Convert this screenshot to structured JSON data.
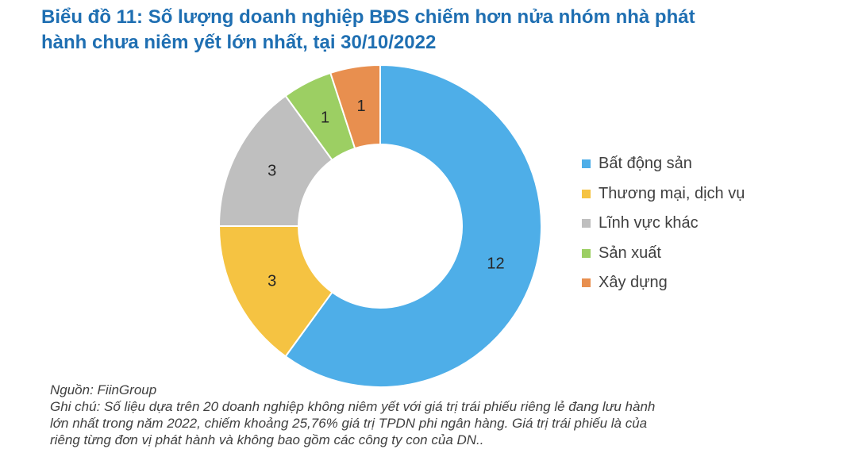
{
  "title": {
    "line1": "Biểu đồ 11: Số lượng doanh nghiệp BĐS chiếm hơn nửa nhóm nhà phát",
    "line2": "hành chưa niêm yết lớn nhất, tại 30/10/2022"
  },
  "chart_data": {
    "type": "pie",
    "variant": "donut",
    "title": "Biểu đồ 11: Số lượng doanh nghiệp BĐS chiếm hơn nửa nhóm nhà phát hành chưa niêm yết lớn nhất, tại 30/10/2022",
    "categories": [
      "Bất động sản",
      "Thương mại, dịch vụ",
      "Lĩnh vực khác",
      "Sản xuất",
      "Xây dựng"
    ],
    "values": [
      12,
      3,
      3,
      1,
      1
    ],
    "colors": [
      "#4eaee8",
      "#f5c342",
      "#bfbfbf",
      "#9ccf63",
      "#e88f4f"
    ],
    "data_labels": [
      "12",
      "3",
      "3",
      "1",
      "1"
    ],
    "legend_position": "right"
  },
  "notes": {
    "source": "Nguồn: FiinGroup",
    "line1": "Ghi chú: Số liệu dựa trên 20 doanh nghiệp không niêm yết với giá trị trái phiếu riêng lẻ đang lưu hành",
    "line2": "lớn nhất trong năm 2022, chiếm khoảng 25,76% giá trị TPDN phi ngân hàng. Giá trị trái phiếu là của",
    "line3": "riêng từng đơn vị phát hành và không bao gồm các công ty con của DN.."
  }
}
